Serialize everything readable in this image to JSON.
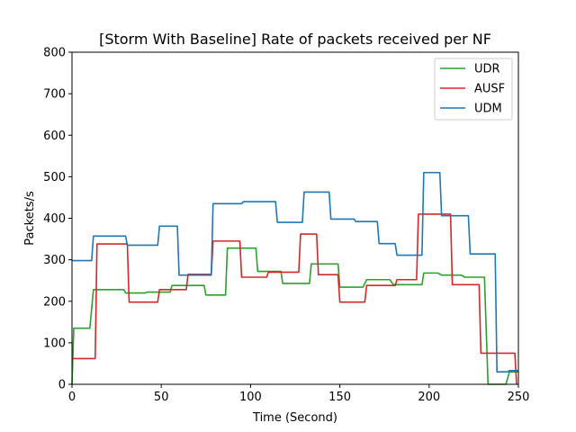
{
  "chart_data": {
    "type": "line",
    "title": "[Storm With Baseline] Rate of packets received per NF",
    "xlabel": "Time (Second)",
    "ylabel": "Packets/s",
    "xlim": [
      0,
      250
    ],
    "ylim": [
      0,
      800
    ],
    "xticks": [
      0,
      50,
      100,
      150,
      200,
      250
    ],
    "yticks": [
      0,
      100,
      200,
      300,
      400,
      500,
      600,
      700,
      800
    ],
    "grid": false,
    "legend_position": "top-right",
    "series": [
      {
        "name": "UDR",
        "color": "#2ca02c",
        "points": [
          [
            0,
            0
          ],
          [
            1,
            135
          ],
          [
            10,
            135
          ],
          [
            12,
            228
          ],
          [
            29,
            228
          ],
          [
            30,
            220
          ],
          [
            41,
            220
          ],
          [
            42,
            222
          ],
          [
            55,
            222
          ],
          [
            56,
            238
          ],
          [
            74,
            238
          ],
          [
            75,
            215
          ],
          [
            86,
            215
          ],
          [
            87,
            328
          ],
          [
            103,
            328
          ],
          [
            104,
            272
          ],
          [
            117,
            272
          ],
          [
            118,
            243
          ],
          [
            133,
            243
          ],
          [
            134,
            290
          ],
          [
            149,
            290
          ],
          [
            150,
            234
          ],
          [
            163,
            234
          ],
          [
            165,
            252
          ],
          [
            178,
            252
          ],
          [
            180,
            240
          ],
          [
            196,
            240
          ],
          [
            197,
            268
          ],
          [
            205,
            268
          ],
          [
            207,
            263
          ],
          [
            218,
            263
          ],
          [
            220,
            258
          ],
          [
            231,
            258
          ],
          [
            233,
            0
          ],
          [
            243,
            0
          ],
          [
            245,
            30
          ],
          [
            248,
            30
          ],
          [
            250,
            30
          ]
        ]
      },
      {
        "name": "AUSF",
        "color": "#d62728",
        "points": [
          [
            0,
            62
          ],
          [
            13,
            62
          ],
          [
            14,
            338
          ],
          [
            31,
            338
          ],
          [
            32,
            198
          ],
          [
            48,
            198
          ],
          [
            49,
            228
          ],
          [
            64,
            228
          ],
          [
            65,
            265
          ],
          [
            78,
            265
          ],
          [
            79,
            345
          ],
          [
            94,
            345
          ],
          [
            95,
            258
          ],
          [
            109,
            258
          ],
          [
            110,
            270
          ],
          [
            127,
            270
          ],
          [
            128,
            362
          ],
          [
            137,
            362
          ],
          [
            138,
            264
          ],
          [
            149,
            264
          ],
          [
            150,
            198
          ],
          [
            164,
            198
          ],
          [
            165,
            238
          ],
          [
            181,
            238
          ],
          [
            182,
            252
          ],
          [
            193,
            252
          ],
          [
            194,
            410
          ],
          [
            212,
            410
          ],
          [
            213,
            240
          ],
          [
            228,
            240
          ],
          [
            229,
            75
          ],
          [
            248,
            75
          ],
          [
            249,
            0
          ]
        ]
      },
      {
        "name": "UDM",
        "color": "#1f77b4",
        "points": [
          [
            0,
            298
          ],
          [
            11,
            298
          ],
          [
            12,
            357
          ],
          [
            30,
            357
          ],
          [
            31,
            335
          ],
          [
            48,
            335
          ],
          [
            49,
            381
          ],
          [
            59,
            381
          ],
          [
            60,
            263
          ],
          [
            78,
            263
          ],
          [
            79,
            435
          ],
          [
            95,
            435
          ],
          [
            96,
            440
          ],
          [
            114,
            440
          ],
          [
            115,
            390
          ],
          [
            129,
            390
          ],
          [
            130,
            463
          ],
          [
            144,
            463
          ],
          [
            145,
            398
          ],
          [
            158,
            398
          ],
          [
            159,
            392
          ],
          [
            171,
            392
          ],
          [
            172,
            339
          ],
          [
            181,
            339
          ],
          [
            182,
            311
          ],
          [
            196,
            311
          ],
          [
            197,
            510
          ],
          [
            206,
            510
          ],
          [
            207,
            406
          ],
          [
            222,
            406
          ],
          [
            223,
            314
          ],
          [
            237,
            314
          ],
          [
            238,
            30
          ],
          [
            244,
            30
          ],
          [
            245,
            33
          ],
          [
            250,
            33
          ]
        ]
      }
    ]
  }
}
